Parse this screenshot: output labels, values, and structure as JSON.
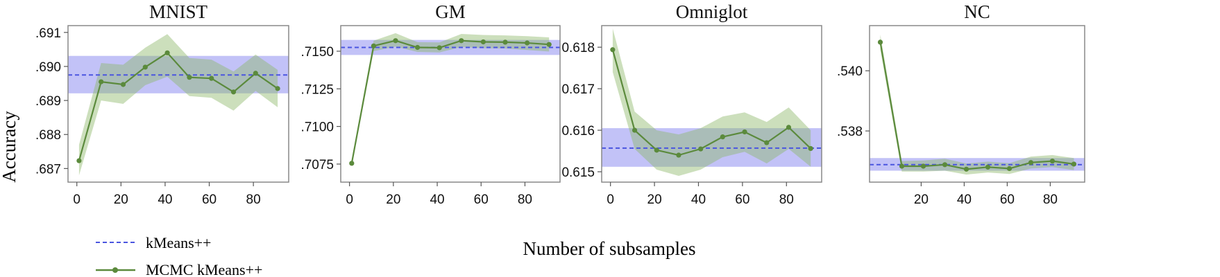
{
  "figure": {
    "shared_ylabel": "Accuracy",
    "shared_xlabel": "Number of subsamples"
  },
  "legend": {
    "position": "bottom-left",
    "items": [
      {
        "label": "kMeans++",
        "color": "#4a55e0",
        "style": "dashed"
      },
      {
        "label": "MCMC kMeans++",
        "color": "#5b8a3c",
        "style": "line-marker"
      }
    ]
  },
  "colors": {
    "mcmc_line": "#5b8a3c",
    "mcmc_band": "#8db86b",
    "kmeans_line": "#4a55e0",
    "kmeans_band": "#8f8ff0",
    "frame": "#888888"
  },
  "chart_data": [
    {
      "type": "line",
      "title": "MNIST",
      "xlim": [
        -4,
        96
      ],
      "ylim": [
        0.6866,
        0.6912
      ],
      "xticks": [
        0,
        20,
        40,
        60,
        80
      ],
      "xtick_labels": [
        "0",
        "20",
        "40",
        "60",
        "80"
      ],
      "yticks": [
        0.687,
        0.688,
        0.689,
        0.69,
        0.691
      ],
      "ytick_labels": [
        ".687",
        ".688",
        ".689",
        ".690",
        ".691"
      ],
      "kmeans": {
        "mean": 0.68975,
        "low": 0.68921,
        "high": 0.69031
      },
      "mcmc": {
        "x": [
          1,
          11,
          21,
          31,
          41,
          51,
          61,
          71,
          81,
          91
        ],
        "mean": [
          0.68723,
          0.68955,
          0.68947,
          0.68998,
          0.6904,
          0.68968,
          0.68965,
          0.68925,
          0.6898,
          0.68935
        ],
        "low": [
          0.6868,
          0.689,
          0.6889,
          0.68945,
          0.6897,
          0.68913,
          0.68908,
          0.6887,
          0.68928,
          0.6888
        ],
        "high": [
          0.6877,
          0.6901,
          0.69005,
          0.69055,
          0.69095,
          0.69025,
          0.6902,
          0.68985,
          0.69035,
          0.6899
        ]
      }
    },
    {
      "type": "line",
      "title": "GM",
      "xlim": [
        -4,
        96
      ],
      "ylim": [
        0.7063,
        0.7167
      ],
      "xticks": [
        0,
        20,
        40,
        60,
        80
      ],
      "xtick_labels": [
        "0",
        "20",
        "40",
        "60",
        "80"
      ],
      "yticks": [
        0.7075,
        0.71,
        0.7125,
        0.715
      ],
      "ytick_labels": [
        ".7075",
        ".7100",
        ".7125",
        ".7150"
      ],
      "kmeans": {
        "mean": 0.71525,
        "low": 0.71475,
        "high": 0.71575
      },
      "mcmc": {
        "x": [
          1,
          11,
          21,
          31,
          41,
          51,
          61,
          71,
          81,
          91
        ],
        "mean": [
          0.70755,
          0.71535,
          0.7157,
          0.71525,
          0.71523,
          0.7157,
          0.71562,
          0.7156,
          0.71555,
          0.71545
        ],
        "low": [
          0.7074,
          0.715,
          0.7153,
          0.71495,
          0.71492,
          0.71528,
          0.7152,
          0.71518,
          0.71508,
          0.71498
        ],
        "high": [
          0.7077,
          0.7157,
          0.7162,
          0.7156,
          0.71558,
          0.71615,
          0.71608,
          0.71605,
          0.716,
          0.71592
        ]
      }
    },
    {
      "type": "line",
      "title": "Omniglot",
      "xlim": [
        -4,
        96
      ],
      "ylim": [
        0.61475,
        0.61852
      ],
      "xticks": [
        0,
        20,
        40,
        60,
        80
      ],
      "xtick_labels": [
        "0",
        "20",
        "40",
        "60",
        "80"
      ],
      "yticks": [
        0.615,
        0.616,
        0.617,
        0.618
      ],
      "ytick_labels": [
        "0.615",
        "0.616",
        "0.617",
        "0.618"
      ],
      "kmeans": {
        "mean": 0.61557,
        "low": 0.61512,
        "high": 0.61605
      },
      "mcmc": {
        "x": [
          1,
          11,
          21,
          31,
          41,
          51,
          61,
          71,
          81,
          91
        ],
        "mean": [
          0.61794,
          0.616,
          0.61552,
          0.6154,
          0.61555,
          0.61584,
          0.61596,
          0.6157,
          0.61607,
          0.61556
        ],
        "low": [
          0.6174,
          0.61555,
          0.61505,
          0.6149,
          0.61505,
          0.61535,
          0.61548,
          0.6152,
          0.61555,
          0.61512
        ],
        "high": [
          0.61845,
          0.61645,
          0.616,
          0.6159,
          0.61605,
          0.61633,
          0.61643,
          0.6162,
          0.61655,
          0.616
        ]
      }
    },
    {
      "type": "line",
      "title": "NC",
      "xlim": [
        -4,
        96
      ],
      "ylim": [
        0.5363,
        0.5415
      ],
      "xticks": [
        20,
        40,
        60,
        80
      ],
      "xtick_labels": [
        "20",
        "40",
        "60",
        "80"
      ],
      "yticks": [
        0.538,
        0.54
      ],
      "ytick_labels": [
        ".538",
        ".540"
      ],
      "kmeans": {
        "mean": 0.53688,
        "low": 0.53668,
        "high": 0.5371
      },
      "mcmc": {
        "x": [
          1,
          11,
          21,
          31,
          41,
          51,
          61,
          71,
          81,
          91
        ],
        "mean": [
          0.54095,
          0.53683,
          0.53683,
          0.53688,
          0.53673,
          0.5368,
          0.53675,
          0.53695,
          0.537,
          0.5369
        ],
        "low": [
          0.5407,
          0.53665,
          0.53665,
          0.53668,
          0.53655,
          0.53662,
          0.53657,
          0.53675,
          0.5368,
          0.5367
        ],
        "high": [
          0.5412,
          0.537,
          0.53702,
          0.53708,
          0.53692,
          0.53698,
          0.53693,
          0.53715,
          0.5372,
          0.5371
        ]
      }
    }
  ]
}
